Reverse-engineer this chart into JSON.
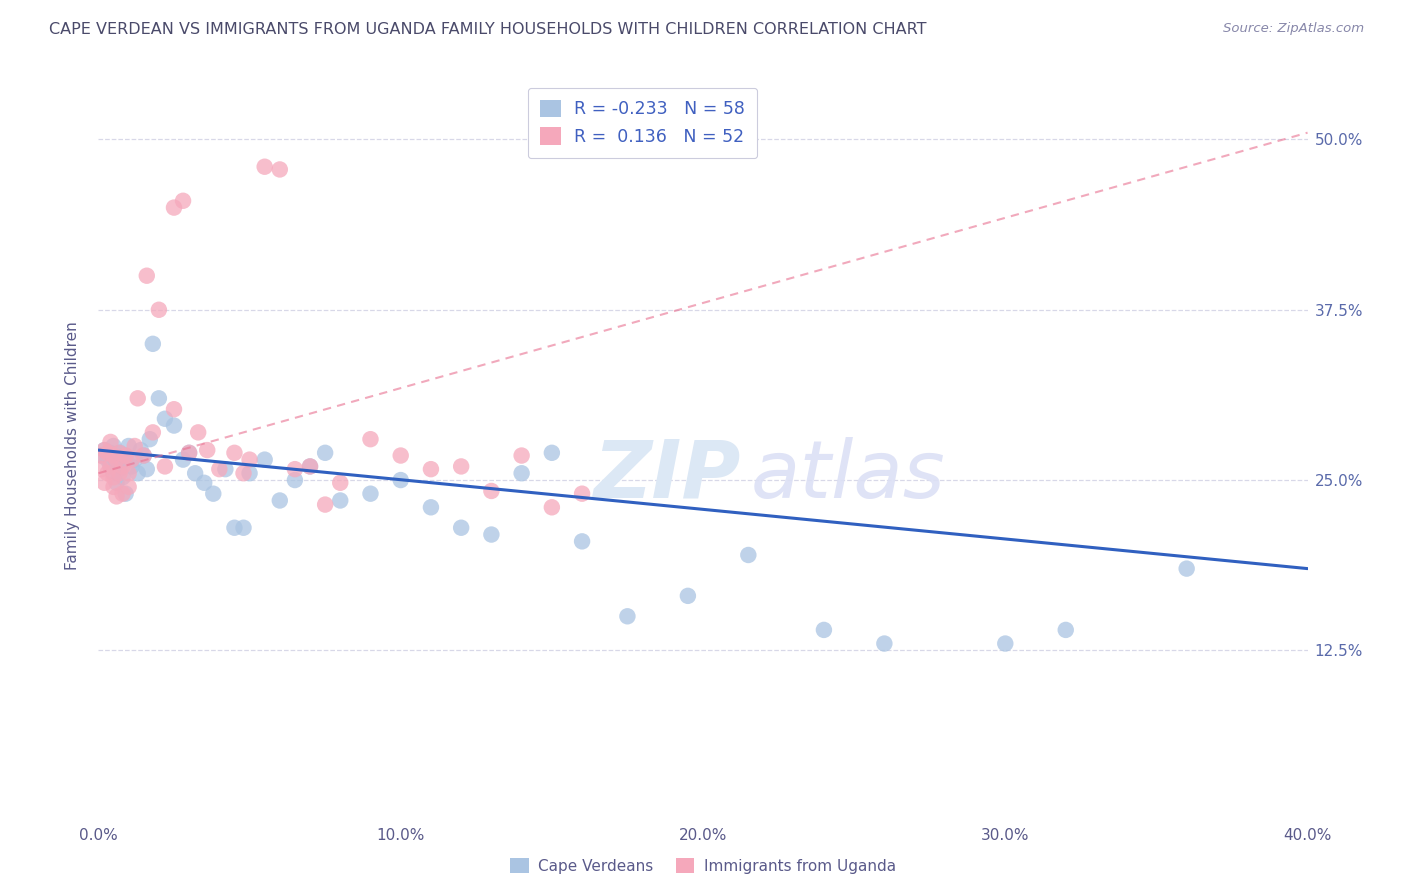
{
  "title": "CAPE VERDEAN VS IMMIGRANTS FROM UGANDA FAMILY HOUSEHOLDS WITH CHILDREN CORRELATION CHART",
  "source": "Source: ZipAtlas.com",
  "ylabel": "Family Households with Children",
  "xlim": [
    0.0,
    0.4
  ],
  "ylim": [
    0.0,
    0.55
  ],
  "xtick_labels": [
    "0.0%",
    "10.0%",
    "20.0%",
    "30.0%",
    "40.0%"
  ],
  "xtick_vals": [
    0.0,
    0.1,
    0.2,
    0.3,
    0.4
  ],
  "ytick_labels": [
    "12.5%",
    "25.0%",
    "37.5%",
    "50.0%"
  ],
  "ytick_vals": [
    0.125,
    0.25,
    0.375,
    0.5
  ],
  "legend_labels": [
    "Cape Verdeans",
    "Immigrants from Uganda"
  ],
  "R_blue": -0.233,
  "N_blue": 58,
  "R_pink": 0.136,
  "N_pink": 52,
  "blue_color": "#aac4e2",
  "pink_color": "#f5a8bb",
  "line_blue": "#3060c0",
  "line_pink": "#e87090",
  "blue_x": [
    0.001,
    0.002,
    0.003,
    0.004,
    0.004,
    0.005,
    0.005,
    0.006,
    0.006,
    0.007,
    0.007,
    0.008,
    0.008,
    0.009,
    0.009,
    0.01,
    0.011,
    0.012,
    0.013,
    0.014,
    0.015,
    0.016,
    0.017,
    0.018,
    0.02,
    0.022,
    0.025,
    0.028,
    0.03,
    0.032,
    0.035,
    0.038,
    0.042,
    0.045,
    0.048,
    0.05,
    0.055,
    0.06,
    0.065,
    0.07,
    0.075,
    0.08,
    0.09,
    0.1,
    0.11,
    0.12,
    0.13,
    0.14,
    0.15,
    0.16,
    0.175,
    0.195,
    0.215,
    0.24,
    0.26,
    0.3,
    0.32,
    0.36
  ],
  "blue_y": [
    0.268,
    0.272,
    0.265,
    0.27,
    0.26,
    0.275,
    0.255,
    0.262,
    0.248,
    0.27,
    0.258,
    0.265,
    0.252,
    0.268,
    0.24,
    0.275,
    0.26,
    0.265,
    0.255,
    0.272,
    0.268,
    0.258,
    0.28,
    0.35,
    0.31,
    0.295,
    0.29,
    0.265,
    0.27,
    0.255,
    0.248,
    0.24,
    0.258,
    0.215,
    0.215,
    0.255,
    0.265,
    0.235,
    0.25,
    0.26,
    0.27,
    0.235,
    0.24,
    0.25,
    0.23,
    0.215,
    0.21,
    0.255,
    0.27,
    0.205,
    0.15,
    0.165,
    0.195,
    0.14,
    0.13,
    0.13,
    0.14,
    0.185
  ],
  "pink_x": [
    0.001,
    0.001,
    0.002,
    0.002,
    0.003,
    0.003,
    0.004,
    0.004,
    0.005,
    0.005,
    0.005,
    0.006,
    0.006,
    0.007,
    0.007,
    0.008,
    0.008,
    0.009,
    0.01,
    0.01,
    0.011,
    0.012,
    0.013,
    0.015,
    0.016,
    0.018,
    0.02,
    0.022,
    0.025,
    0.03,
    0.033,
    0.036,
    0.04,
    0.045,
    0.048,
    0.05,
    0.055,
    0.06,
    0.065,
    0.07,
    0.075,
    0.08,
    0.09,
    0.1,
    0.11,
    0.12,
    0.13,
    0.14,
    0.15,
    0.16,
    0.025,
    0.028
  ],
  "pink_y": [
    0.268,
    0.258,
    0.272,
    0.248,
    0.27,
    0.255,
    0.278,
    0.26,
    0.268,
    0.252,
    0.245,
    0.265,
    0.238,
    0.27,
    0.255,
    0.26,
    0.24,
    0.268,
    0.255,
    0.245,
    0.265,
    0.275,
    0.31,
    0.268,
    0.4,
    0.285,
    0.375,
    0.26,
    0.302,
    0.27,
    0.285,
    0.272,
    0.258,
    0.27,
    0.255,
    0.265,
    0.48,
    0.478,
    0.258,
    0.26,
    0.232,
    0.248,
    0.28,
    0.268,
    0.258,
    0.26,
    0.242,
    0.268,
    0.23,
    0.24,
    0.45,
    0.455
  ],
  "blue_line_x0": 0.0,
  "blue_line_y0": 0.272,
  "blue_line_x1": 0.4,
  "blue_line_y1": 0.185,
  "pink_line_x0": 0.0,
  "pink_line_y0": 0.255,
  "pink_line_x1": 0.4,
  "pink_line_y1": 0.505
}
